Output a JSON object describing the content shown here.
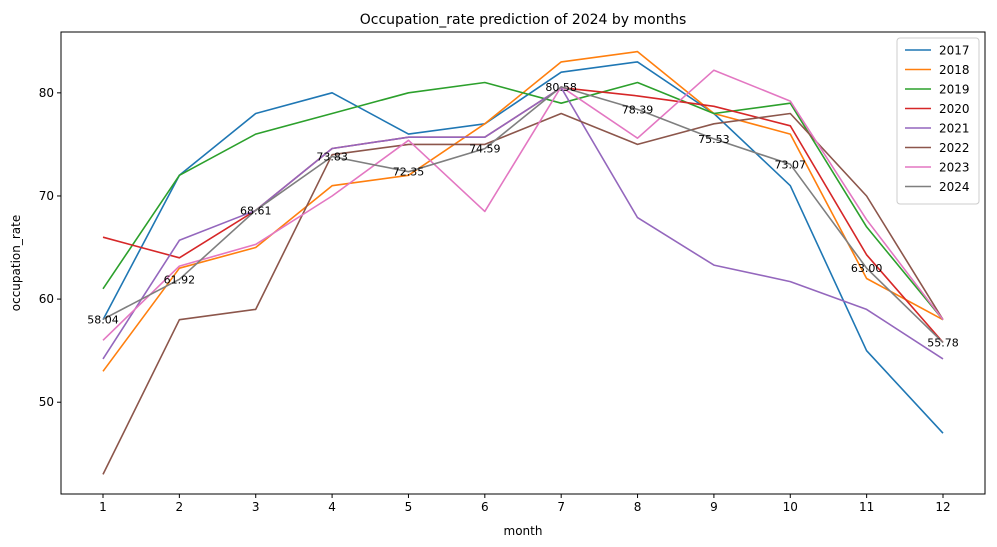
{
  "chart_data": {
    "type": "line",
    "title": "Occupation_rate prediction of 2024 by months",
    "xlabel": "month",
    "ylabel": "occupation_rate",
    "x": [
      1,
      2,
      3,
      4,
      5,
      6,
      7,
      8,
      9,
      10,
      11,
      12
    ],
    "xlim": [
      0.45,
      12.55
    ],
    "ylim": [
      41.1,
      85.9
    ],
    "yticks": [
      50,
      60,
      70,
      80
    ],
    "grid": false,
    "legend_position": "top-right",
    "series": [
      {
        "name": "2017",
        "color": "#1f77b4",
        "values": [
          58,
          72,
          78,
          80,
          76,
          77,
          82,
          83,
          78,
          71,
          55,
          47
        ]
      },
      {
        "name": "2018",
        "color": "#ff7f0e",
        "values": [
          53,
          63,
          65,
          71,
          72,
          77,
          83,
          84,
          78,
          76,
          62,
          58
        ]
      },
      {
        "name": "2019",
        "color": "#2ca02c",
        "values": [
          61,
          72,
          76,
          78,
          80,
          81,
          79,
          81,
          78,
          79,
          67,
          58
        ]
      },
      {
        "name": "2020",
        "color": "#d62728",
        "values": [
          66,
          64,
          68.6,
          74.6,
          75.7,
          75.7,
          80.5,
          79.7,
          78.7,
          76.8,
          64.3,
          55.8
        ]
      },
      {
        "name": "2021",
        "color": "#9467bd",
        "values": [
          54.2,
          65.7,
          68.6,
          74.6,
          75.7,
          75.7,
          80.5,
          67.9,
          63.3,
          61.7,
          59,
          54.2
        ]
      },
      {
        "name": "2022",
        "color": "#8c564b",
        "values": [
          43,
          58,
          59,
          74,
          75,
          75,
          78,
          75,
          77,
          78,
          70,
          58
        ]
      },
      {
        "name": "2023",
        "color": "#e377c2",
        "values": [
          56,
          63.2,
          65.3,
          70,
          75.4,
          68.5,
          80.6,
          75.6,
          82.2,
          79.2,
          67.7,
          58
        ]
      },
      {
        "name": "2024",
        "color": "#7f7f7f",
        "values": [
          58.04,
          61.92,
          68.61,
          73.83,
          72.35,
          74.59,
          80.58,
          78.39,
          75.53,
          73.07,
          63.0,
          55.78
        ]
      }
    ],
    "data_labels": [
      "58.04",
      "61.92",
      "68.61",
      "73.83",
      "72.35",
      "74.59",
      "80.58",
      "78.39",
      "75.53",
      "73.07",
      "63.00",
      "55.78"
    ]
  }
}
